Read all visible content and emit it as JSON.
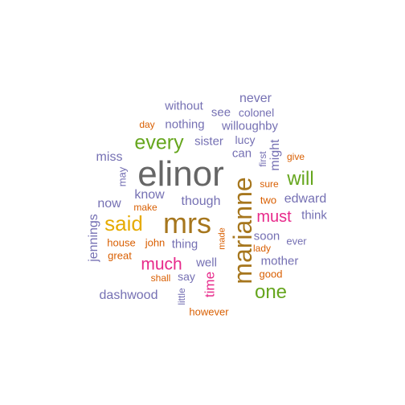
{
  "palette": {
    "gray": "#666666",
    "brown": "#a6761d",
    "olive_gold": "#e6ab02",
    "green": "#66a61e",
    "magenta": "#e7298a",
    "purple": "#7570b3",
    "orange": "#d95f02"
  },
  "words": {
    "elinor": "elinor",
    "mrs": "mrs",
    "marianne": "marianne",
    "every": "every",
    "said": "said",
    "will": "will",
    "one": "one",
    "much": "much",
    "must": "must",
    "never": "never",
    "without": "without",
    "see": "see",
    "colonel": "colonel",
    "day": "day",
    "nothing": "nothing",
    "willoughby": "willoughby",
    "lucy": "lucy",
    "sister": "sister",
    "can": "can",
    "first": "first",
    "might": "might",
    "give": "give",
    "miss": "miss",
    "may": "may",
    "know": "know",
    "make": "make",
    "now": "now",
    "though": "though",
    "sure": "sure",
    "two": "two",
    "edward": "edward",
    "think": "think",
    "jennings": "jennings",
    "house": "house",
    "john": "john",
    "thing": "thing",
    "made": "made",
    "soon": "soon",
    "ever": "ever",
    "lady": "lady",
    "great": "great",
    "well": "well",
    "mother": "mother",
    "time": "time",
    "say": "say",
    "shall": "shall",
    "good": "good",
    "dashwood": "dashwood",
    "little": "little",
    "however": "however"
  }
}
